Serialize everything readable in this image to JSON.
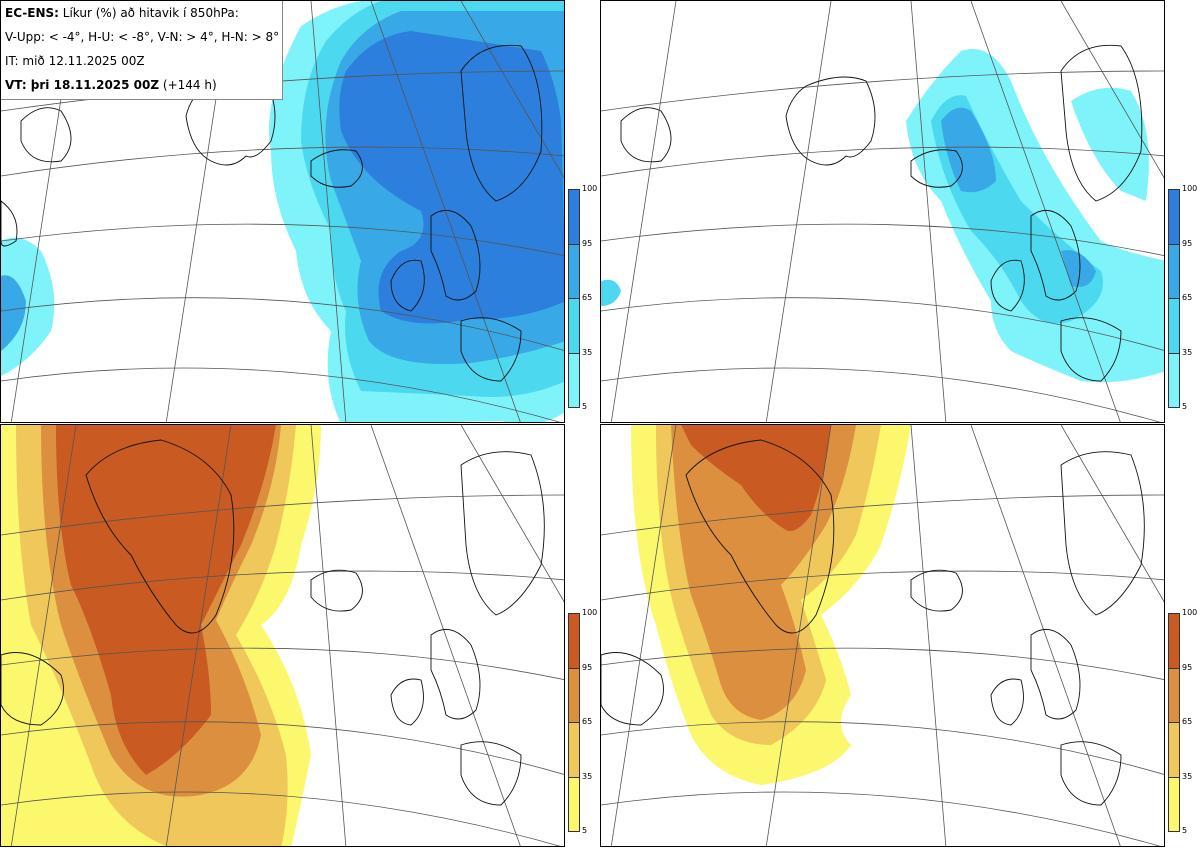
{
  "header": {
    "line1_bold": "EC-ENS:",
    "line1_rest": "Líkur (%) að hitavik í 850hPa:",
    "line2": "V-Upp: < -4°, H-U: < -8°, V-N: > 4°, H-N: > 8°",
    "line3": "IT: mið 12.11.2025 00Z",
    "line4_bold": "VT: þri 18.11.2025 00Z",
    "line4_rest": "(+144 h)"
  },
  "panels": [
    {
      "id": "V-Upp",
      "position": "top-left",
      "palette": "blue"
    },
    {
      "id": "H-U",
      "position": "top-right",
      "palette": "blue"
    },
    {
      "id": "V-N",
      "position": "bottom-left",
      "palette": "orange"
    },
    {
      "id": "H-N",
      "position": "bottom-right",
      "palette": "orange"
    }
  ],
  "colorbar": {
    "ticks": [
      "100",
      "95",
      "65",
      "35",
      "5"
    ],
    "blue": [
      "#7ff3fa",
      "#4cd9f0",
      "#38a9e6",
      "#2c7fdc"
    ],
    "orange": [
      "#fbf86e",
      "#f0c75a",
      "#dc8f3e",
      "#c85a22"
    ]
  }
}
